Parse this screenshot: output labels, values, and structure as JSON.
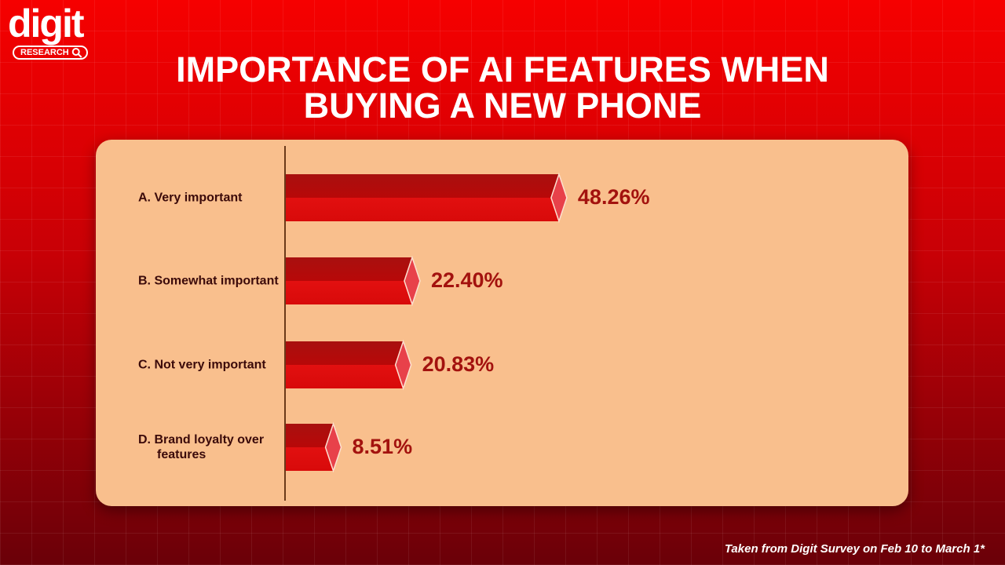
{
  "logo": {
    "name": "digit",
    "tag": "RESEARCH"
  },
  "chart_data": {
    "type": "bar",
    "orientation": "horizontal",
    "title": "IMPORTANCE OF AI FEATURES WHEN BUYING A NEW PHONE",
    "categories": [
      "A. Very important",
      "B. Somewhat important",
      "C. Not very important",
      "D. Brand loyalty over features"
    ],
    "values": [
      48.26,
      22.4,
      20.83,
      8.51
    ],
    "value_labels": [
      "48.26%",
      "22.40%",
      "20.83%",
      "8.51%"
    ],
    "color": "#d40c0c"
  },
  "footnote": "Taken from Digit Survey on Feb 10 to March 1*"
}
